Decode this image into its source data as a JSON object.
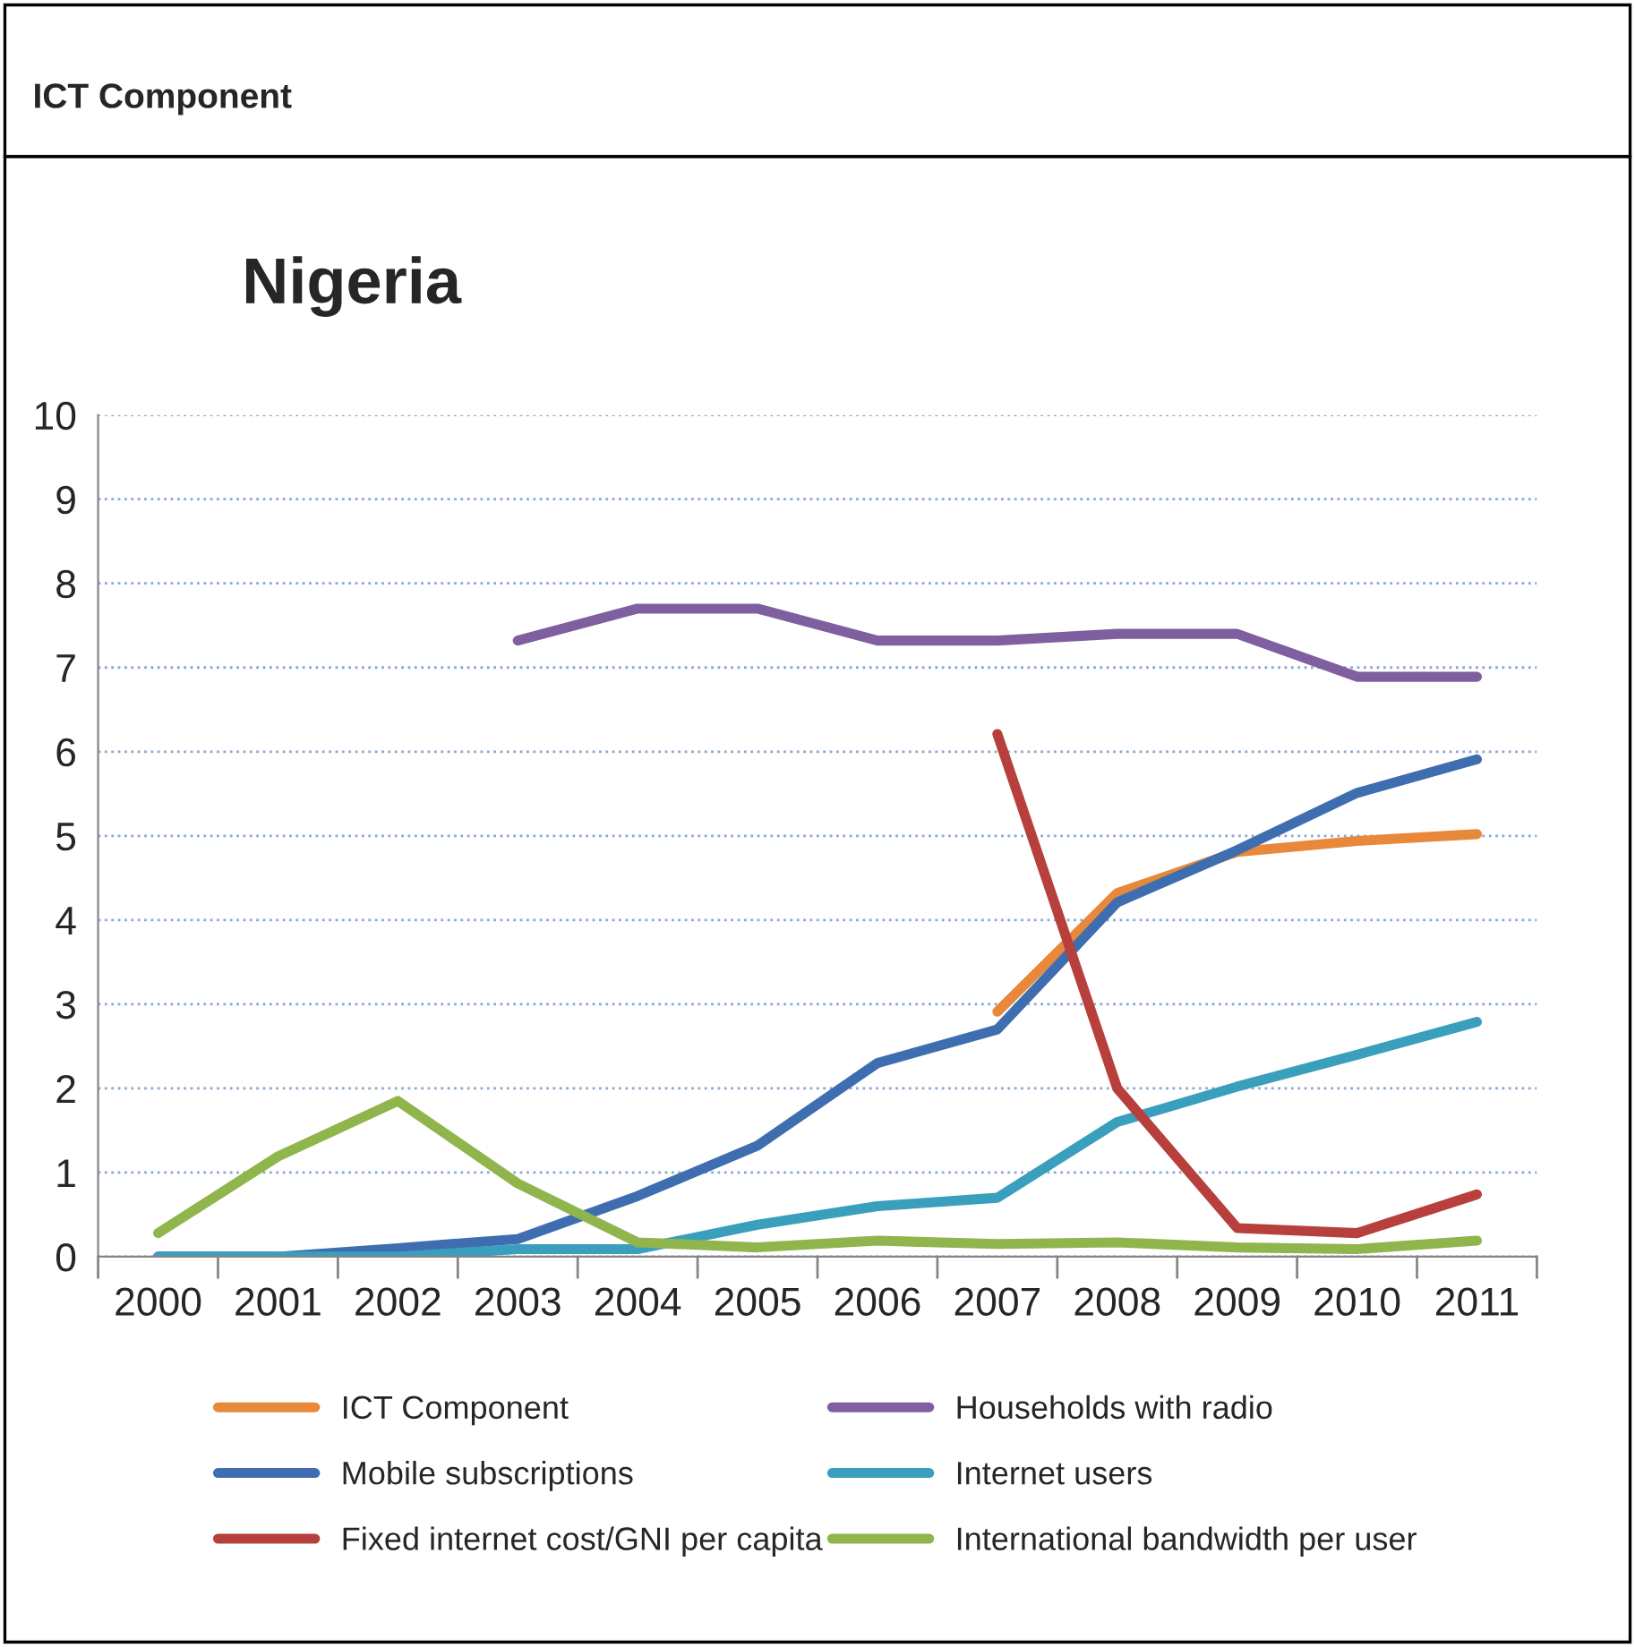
{
  "chart_data": {
    "type": "line",
    "title": "Nigeria",
    "annotations": [
      "ICT Component"
    ],
    "categories": [
      "2000",
      "2001",
      "2002",
      "2003",
      "2004",
      "2005",
      "2006",
      "2007",
      "2008",
      "2009",
      "2010",
      "2011"
    ],
    "series": [
      {
        "name": "ICT Component",
        "color": "#e8883a",
        "values": [
          null,
          null,
          null,
          null,
          null,
          null,
          null,
          2.91,
          4.32,
          4.81,
          4.94,
          5.02
        ]
      },
      {
        "name": "Households with radio",
        "color": "#7f5f9f",
        "values": [
          null,
          null,
          null,
          7.32,
          7.7,
          7.7,
          7.32,
          7.32,
          7.4,
          7.4,
          6.89,
          6.89
        ]
      },
      {
        "name": "Mobile subscriptions",
        "color": "#3f6eb0",
        "values": [
          0,
          0,
          0.1,
          0.21,
          0.72,
          1.32,
          2.3,
          2.7,
          4.21,
          4.83,
          5.51,
          5.91
        ]
      },
      {
        "name": "Internet users",
        "color": "#3a9fbd",
        "values": [
          0,
          0,
          0,
          0.09,
          0.09,
          0.38,
          0.6,
          0.7,
          1.6,
          2.02,
          2.4,
          2.79
        ]
      },
      {
        "name": "Fixed internet cost/GNI per capita",
        "color": "#b8403c",
        "values": [
          null,
          null,
          null,
          null,
          null,
          null,
          null,
          6.21,
          2.0,
          0.34,
          0.28,
          0.74
        ]
      },
      {
        "name": "International bandwidth per user",
        "color": "#8fb54c",
        "values": [
          0.28,
          1.19,
          1.85,
          0.87,
          0.17,
          0.11,
          0.19,
          0.15,
          0.17,
          0.11,
          0.09,
          0.19
        ]
      }
    ],
    "ylim": [
      0,
      10
    ],
    "yticks": [
      0,
      1,
      2,
      3,
      4,
      5,
      6,
      7,
      8,
      9,
      10
    ],
    "grid": "y",
    "legend": "bottom",
    "marker": "none",
    "line_style": "solid"
  }
}
